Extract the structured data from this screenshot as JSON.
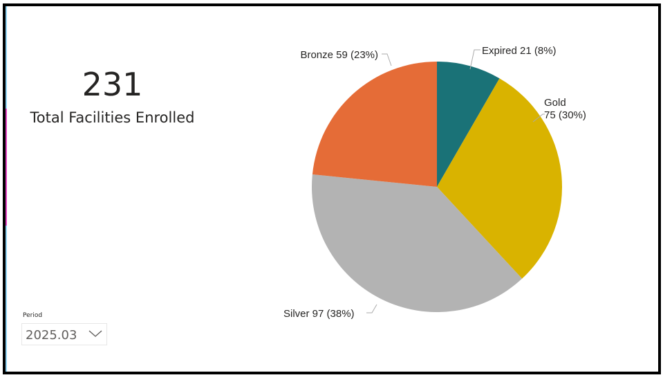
{
  "kpi": {
    "value": "231",
    "label": "Total Facilities Enrolled"
  },
  "slicer": {
    "title": "Period",
    "selected": "2025.03",
    "icon": "chevron-down-icon"
  },
  "chart_data": {
    "type": "pie",
    "start": "top",
    "direction": "clockwise",
    "slices": [
      {
        "name": "Expired",
        "value": 21,
        "percent": "8%",
        "color": "#1a7277",
        "label": [
          "Expired 21 (8%)"
        ]
      },
      {
        "name": "Gold",
        "value": 75,
        "percent": "30%",
        "color": "#d9b300",
        "label": [
          "Gold",
          "75 (30%)"
        ]
      },
      {
        "name": "Silver",
        "value": 97,
        "percent": "38%",
        "color": "#b3b3b3",
        "label": [
          "Silver 97 (38%)"
        ]
      },
      {
        "name": "Bronze",
        "value": 59,
        "percent": "23%",
        "color": "#e56c37",
        "label": [
          "Bronze 59 (23%)"
        ]
      }
    ]
  }
}
